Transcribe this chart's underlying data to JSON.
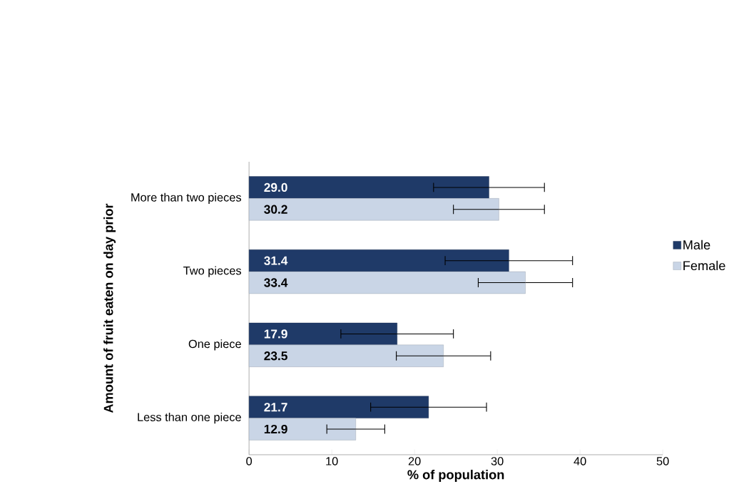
{
  "chart_data": {
    "type": "bar",
    "orientation": "horizontal",
    "xlabel": "% of population",
    "ylabel": "Amount of fruit eaten on day prior",
    "categories": [
      "More than two pieces",
      "Two pieces",
      "One piece",
      "Less than one piece"
    ],
    "series": [
      {
        "name": "Male",
        "color": "#1f3a68",
        "values": [
          29.0,
          31.4,
          17.9,
          21.7
        ],
        "errors": [
          6.7,
          7.7,
          6.8,
          7.0
        ],
        "value_labels": [
          "29.0",
          "31.4",
          "17.9",
          "21.7"
        ]
      },
      {
        "name": "Female",
        "color": "#c9d5e6",
        "values": [
          30.2,
          33.4,
          23.5,
          12.9
        ],
        "errors": [
          5.5,
          5.7,
          5.7,
          3.5
        ],
        "value_labels": [
          "30.2",
          "33.4",
          "23.5",
          "12.9"
        ]
      }
    ],
    "xlim": [
      0,
      50
    ],
    "xticks": [
      0,
      10,
      20,
      30,
      40,
      50
    ],
    "legend": "right",
    "grid": false
  }
}
